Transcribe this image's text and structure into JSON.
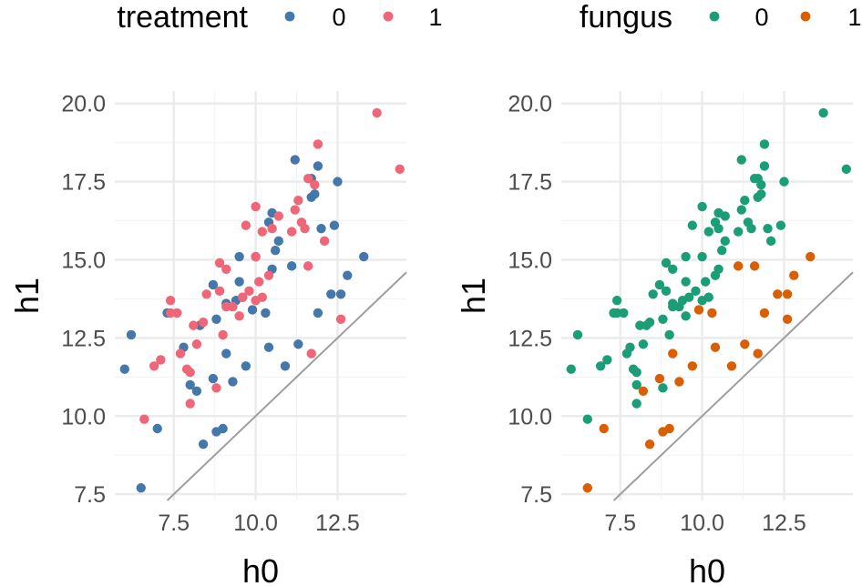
{
  "chart_data": [
    {
      "type": "scatter",
      "xlabel": "h0",
      "ylabel": "h1",
      "xlim": [
        5.7,
        14.6
      ],
      "ylim": [
        7.3,
        20.4
      ],
      "x_ticks": [
        7.5,
        10.0,
        12.5
      ],
      "x_tick_labels": [
        "7.5",
        "10.0",
        "12.5"
      ],
      "y_ticks": [
        7.5,
        10.0,
        12.5,
        15.0,
        17.5,
        20.0
      ],
      "y_tick_labels": [
        "7.5",
        "10.0",
        "12.5",
        "15.0",
        "17.5",
        "20.0"
      ],
      "grid": true,
      "reference_line": {
        "slope": 1,
        "intercept": 0
      },
      "legend": {
        "title": "treatment",
        "position": "top"
      },
      "series": [
        {
          "name": "0",
          "color": "#4477aa",
          "points": [
            [
              6.5,
              7.7
            ],
            [
              6.0,
              11.5
            ],
            [
              6.2,
              12.6
            ],
            [
              7.0,
              9.6
            ],
            [
              7.3,
              13.3
            ],
            [
              7.8,
              12.2
            ],
            [
              8.0,
              11.0
            ],
            [
              8.2,
              10.8
            ],
            [
              8.3,
              12.9
            ],
            [
              8.4,
              9.1
            ],
            [
              8.7,
              11.2
            ],
            [
              8.7,
              14.2
            ],
            [
              8.8,
              9.5
            ],
            [
              8.8,
              13.1
            ],
            [
              9.0,
              9.6
            ],
            [
              9.1,
              12.0
            ],
            [
              9.1,
              13.6
            ],
            [
              9.3,
              11.1
            ],
            [
              9.4,
              13.7
            ],
            [
              9.5,
              14.3
            ],
            [
              9.5,
              15.1
            ],
            [
              9.6,
              13.8
            ],
            [
              9.7,
              11.6
            ],
            [
              9.9,
              13.4
            ],
            [
              10.0,
              15.1
            ],
            [
              10.3,
              13.3
            ],
            [
              10.4,
              12.2
            ],
            [
              10.4,
              16.2
            ],
            [
              10.5,
              16.5
            ],
            [
              10.5,
              14.7
            ],
            [
              10.6,
              15.3
            ],
            [
              10.7,
              15.6
            ],
            [
              10.9,
              11.6
            ],
            [
              11.1,
              14.8
            ],
            [
              11.2,
              18.2
            ],
            [
              11.3,
              12.3
            ],
            [
              11.7,
              17.6
            ],
            [
              11.7,
              17.0
            ],
            [
              11.8,
              17.1
            ],
            [
              11.9,
              18.0
            ],
            [
              11.9,
              13.3
            ],
            [
              12.0,
              16.0
            ],
            [
              12.3,
              13.9
            ],
            [
              12.4,
              16.1
            ],
            [
              12.5,
              17.5
            ],
            [
              12.6,
              13.9
            ],
            [
              12.8,
              14.5
            ],
            [
              13.3,
              15.1
            ]
          ]
        },
        {
          "name": "1",
          "color": "#ee6677",
          "points": [
            [
              6.6,
              9.9
            ],
            [
              6.9,
              11.6
            ],
            [
              7.1,
              11.8
            ],
            [
              7.4,
              13.3
            ],
            [
              7.4,
              13.7
            ],
            [
              7.6,
              13.3
            ],
            [
              7.7,
              12.0
            ],
            [
              7.9,
              11.5
            ],
            [
              8.0,
              10.4
            ],
            [
              8.0,
              11.4
            ],
            [
              8.1,
              12.9
            ],
            [
              8.2,
              12.3
            ],
            [
              8.4,
              13.0
            ],
            [
              8.5,
              13.9
            ],
            [
              8.8,
              10.9
            ],
            [
              8.9,
              14.0
            ],
            [
              8.9,
              14.9
            ],
            [
              9.0,
              12.6
            ],
            [
              9.1,
              13.5
            ],
            [
              9.1,
              14.7
            ],
            [
              9.3,
              13.5
            ],
            [
              9.5,
              13.2
            ],
            [
              9.6,
              13.8
            ],
            [
              9.7,
              16.1
            ],
            [
              9.8,
              14.0
            ],
            [
              10.0,
              16.7
            ],
            [
              10.0,
              15.1
            ],
            [
              10.0,
              13.7
            ],
            [
              10.1,
              14.3
            ],
            [
              10.2,
              15.9
            ],
            [
              10.2,
              13.8
            ],
            [
              10.4,
              14.5
            ],
            [
              10.5,
              16.0
            ],
            [
              10.7,
              16.4
            ],
            [
              11.1,
              15.9
            ],
            [
              11.2,
              16.6
            ],
            [
              11.3,
              16.9
            ],
            [
              11.4,
              16.2
            ],
            [
              11.5,
              16.0
            ],
            [
              11.6,
              17.6
            ],
            [
              11.6,
              14.8
            ],
            [
              11.7,
              12.0
            ],
            [
              11.8,
              17.4
            ],
            [
              11.9,
              18.7
            ],
            [
              12.1,
              15.6
            ],
            [
              12.6,
              13.1
            ],
            [
              13.7,
              19.7
            ],
            [
              14.4,
              17.9
            ]
          ]
        }
      ]
    },
    {
      "type": "scatter",
      "xlabel": "h0",
      "ylabel": "h1",
      "xlim": [
        5.7,
        14.6
      ],
      "ylim": [
        7.3,
        20.4
      ],
      "x_ticks": [
        7.5,
        10.0,
        12.5
      ],
      "x_tick_labels": [
        "7.5",
        "10.0",
        "12.5"
      ],
      "y_ticks": [
        7.5,
        10.0,
        12.5,
        15.0,
        17.5,
        20.0
      ],
      "y_tick_labels": [
        "7.5",
        "10.0",
        "12.5",
        "15.0",
        "17.5",
        "20.0"
      ],
      "grid": true,
      "reference_line": {
        "slope": 1,
        "intercept": 0
      },
      "legend": {
        "title": "fungus",
        "position": "top"
      },
      "series": [
        {
          "name": "0",
          "color": "#1b9e77",
          "points": [
            [
              6.0,
              11.5
            ],
            [
              6.2,
              12.6
            ],
            [
              6.5,
              9.9
            ],
            [
              6.9,
              11.6
            ],
            [
              7.1,
              11.8
            ],
            [
              7.3,
              13.3
            ],
            [
              7.4,
              13.3
            ],
            [
              7.4,
              13.7
            ],
            [
              7.6,
              13.3
            ],
            [
              7.7,
              12.0
            ],
            [
              7.8,
              12.2
            ],
            [
              7.9,
              11.5
            ],
            [
              8.0,
              10.4
            ],
            [
              8.0,
              11.0
            ],
            [
              8.0,
              11.4
            ],
            [
              8.1,
              12.9
            ],
            [
              8.2,
              12.3
            ],
            [
              8.3,
              12.9
            ],
            [
              8.4,
              13.0
            ],
            [
              8.5,
              13.9
            ],
            [
              8.7,
              14.2
            ],
            [
              8.8,
              13.1
            ],
            [
              8.8,
              10.9
            ],
            [
              8.9,
              14.0
            ],
            [
              8.9,
              14.9
            ],
            [
              9.0,
              12.6
            ],
            [
              9.1,
              13.5
            ],
            [
              9.1,
              13.6
            ],
            [
              9.1,
              14.7
            ],
            [
              9.3,
              13.5
            ],
            [
              9.4,
              13.7
            ],
            [
              9.5,
              14.3
            ],
            [
              9.5,
              15.1
            ],
            [
              9.5,
              13.2
            ],
            [
              9.6,
              13.8
            ],
            [
              9.7,
              16.1
            ],
            [
              9.8,
              14.0
            ],
            [
              10.0,
              16.7
            ],
            [
              10.0,
              15.1
            ],
            [
              10.0,
              13.7
            ],
            [
              10.1,
              14.3
            ],
            [
              10.2,
              15.9
            ],
            [
              10.2,
              13.8
            ],
            [
              10.4,
              14.5
            ],
            [
              10.4,
              16.2
            ],
            [
              10.5,
              16.5
            ],
            [
              10.5,
              16.0
            ],
            [
              10.5,
              14.7
            ],
            [
              10.6,
              15.3
            ],
            [
              10.7,
              16.4
            ],
            [
              10.7,
              15.6
            ],
            [
              11.1,
              15.9
            ],
            [
              11.2,
              18.2
            ],
            [
              11.2,
              16.6
            ],
            [
              11.3,
              16.9
            ],
            [
              11.4,
              16.2
            ],
            [
              11.5,
              16.0
            ],
            [
              11.6,
              17.6
            ],
            [
              11.7,
              17.6
            ],
            [
              11.7,
              17.0
            ],
            [
              11.8,
              17.1
            ],
            [
              11.8,
              17.4
            ],
            [
              11.9,
              18.0
            ],
            [
              11.9,
              18.7
            ],
            [
              12.0,
              16.0
            ],
            [
              12.1,
              15.6
            ],
            [
              12.4,
              16.1
            ],
            [
              12.5,
              17.5
            ],
            [
              13.7,
              19.7
            ],
            [
              14.4,
              17.9
            ]
          ]
        },
        {
          "name": "1",
          "color": "#d95f02",
          "points": [
            [
              6.5,
              7.7
            ],
            [
              7.0,
              9.6
            ],
            [
              8.2,
              10.8
            ],
            [
              8.4,
              9.1
            ],
            [
              8.7,
              11.2
            ],
            [
              8.8,
              9.5
            ],
            [
              9.0,
              9.6
            ],
            [
              9.1,
              12.0
            ],
            [
              9.3,
              11.1
            ],
            [
              9.7,
              11.6
            ],
            [
              9.9,
              13.4
            ],
            [
              10.3,
              13.3
            ],
            [
              10.4,
              12.2
            ],
            [
              10.9,
              11.6
            ],
            [
              11.1,
              14.8
            ],
            [
              11.3,
              12.3
            ],
            [
              11.6,
              14.8
            ],
            [
              11.7,
              12.0
            ],
            [
              11.9,
              13.3
            ],
            [
              12.3,
              13.9
            ],
            [
              12.6,
              13.9
            ],
            [
              12.6,
              13.1
            ],
            [
              12.8,
              14.5
            ],
            [
              13.3,
              15.1
            ]
          ]
        }
      ]
    }
  ]
}
